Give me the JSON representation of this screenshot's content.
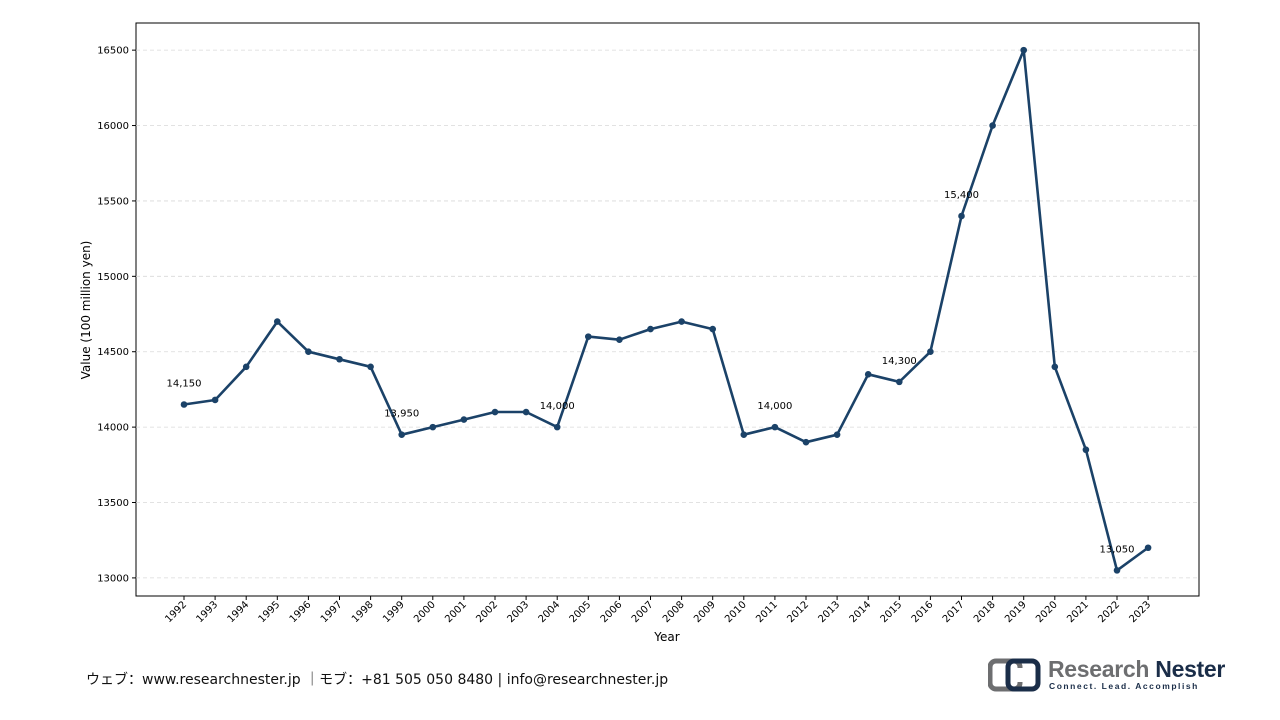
{
  "chart_data": {
    "type": "line",
    "title": "",
    "xlabel": "Year",
    "ylabel": "Value (100 million yen)",
    "x": [
      "1992",
      "1993",
      "1994",
      "1995",
      "1996",
      "1997",
      "1998",
      "1999",
      "2000",
      "2001",
      "2002",
      "2003",
      "2004",
      "2005",
      "2006",
      "2007",
      "2008",
      "2009",
      "2010",
      "2011",
      "2012",
      "2013",
      "2014",
      "2015",
      "2016",
      "2017",
      "2018",
      "2019",
      "2020",
      "2021",
      "2022",
      "2023"
    ],
    "series": [
      {
        "values": [
          14150,
          14180,
          14400,
          14700,
          14500,
          14450,
          14400,
          13950,
          14000,
          14050,
          14100,
          14100,
          14000,
          14600,
          14580,
          14650,
          14700,
          14650,
          13950,
          14000,
          13900,
          13950,
          14350,
          14300,
          14500,
          15400,
          16000,
          16500,
          14400,
          13850,
          13050,
          13200
        ]
      }
    ],
    "ylim": [
      12880,
      16680
    ],
    "yticks": [
      13000,
      13500,
      14000,
      14500,
      15000,
      15500,
      16000,
      16500
    ],
    "grid": "horizontal dashed",
    "line_color": "#1b4268",
    "annotations": [
      {
        "x": "1992",
        "y": 14150,
        "text": "14,150"
      },
      {
        "x": "1999",
        "y": 13950,
        "text": "13,950"
      },
      {
        "x": "2004",
        "y": 14000,
        "text": "14,000"
      },
      {
        "x": "2011",
        "y": 14000,
        "text": "14,000"
      },
      {
        "x": "2015",
        "y": 14300,
        "text": "14,300"
      },
      {
        "x": "2017",
        "y": 15400,
        "text": "15,400"
      },
      {
        "x": "2022",
        "y": 13050,
        "text": "13,050"
      }
    ]
  },
  "footer": {
    "contact": "ウェブ：www.researchnester.jp ｜モブ：+81 505 050 8480 | info@researchnester.jp"
  },
  "logo": {
    "name_part1": "Research",
    "name_part2": "Nester",
    "tagline": "Connect. Lead. Accomplish",
    "icon": "research-nester-logo-icon",
    "colors": {
      "gray": "#6d6e70",
      "navy": "#1a2d48"
    }
  }
}
